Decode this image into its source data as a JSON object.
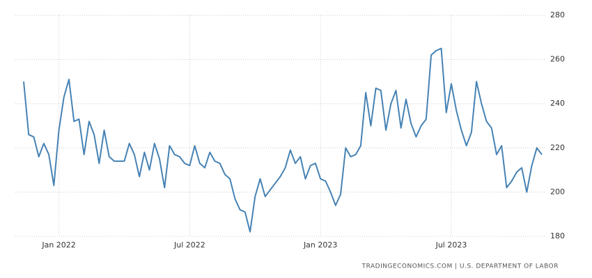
{
  "chart_data": {
    "type": "line",
    "categories": [
      null,
      null,
      null,
      null,
      null,
      null,
      null,
      "Jan 2022",
      null,
      null,
      null,
      null,
      null,
      null,
      null,
      null,
      null,
      null,
      null,
      null,
      null,
      null,
      null,
      null,
      null,
      null,
      null,
      null,
      null,
      null,
      null,
      null,
      null,
      "Jul 2022",
      null,
      null,
      null,
      null,
      null,
      null,
      null,
      null,
      null,
      null,
      null,
      null,
      null,
      null,
      null,
      null,
      null,
      null,
      null,
      null,
      null,
      null,
      null,
      null,
      null,
      "Jan 2023",
      null,
      null,
      null,
      null,
      null,
      null,
      null,
      null,
      null,
      null,
      null,
      null,
      null,
      null,
      null,
      null,
      null,
      null,
      null,
      null,
      null,
      null,
      null,
      null,
      null,
      "Jul 2023",
      null,
      null,
      null,
      null,
      null,
      null,
      null,
      null,
      null,
      null,
      null,
      null,
      null,
      null,
      null,
      null,
      null,
      null
    ],
    "values": [
      250,
      226,
      225,
      216,
      222,
      217,
      203,
      228,
      243,
      251,
      232,
      233,
      217,
      232,
      226,
      213,
      228,
      216,
      214,
      214,
      214,
      222,
      217,
      207,
      218,
      210,
      222,
      215,
      202,
      221,
      217,
      216,
      213,
      212,
      221,
      213,
      211,
      218,
      214,
      213,
      208,
      206,
      197,
      192,
      191,
      182,
      198,
      206,
      198,
      201,
      204,
      207,
      211,
      219,
      213,
      216,
      206,
      212,
      213,
      206,
      205,
      200,
      194,
      199,
      220,
      216,
      217,
      221,
      245,
      230,
      247,
      246,
      228,
      240,
      246,
      229,
      242,
      231,
      225,
      230,
      233,
      262,
      264,
      265,
      236,
      249,
      237,
      228,
      221,
      227,
      250,
      240,
      232,
      229,
      217,
      221,
      202,
      205,
      209,
      211,
      200,
      212,
      220,
      217
    ],
    "color": "#4682b4",
    "ylim": [
      180,
      280
    ],
    "yticks": [
      180,
      200,
      220,
      240,
      260,
      280
    ],
    "grid": true,
    "source": "TRADINGECONOMICS.COM | U.S. DEPARTMENT OF LABOR"
  }
}
